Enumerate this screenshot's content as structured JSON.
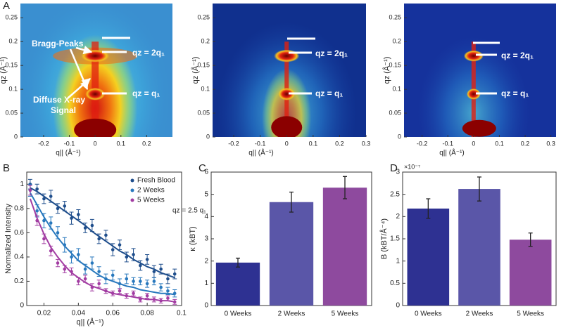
{
  "chart_data": [
    {
      "type": "heatmap",
      "panel": "A",
      "xlabel": "q|| (Å⁻¹)",
      "ylabel": "qz (Å⁻¹)",
      "xlim": [
        -0.29,
        0.3
      ],
      "xticks": [
        -0.2,
        -0.1,
        0,
        0.1,
        0.2
      ],
      "ylim": [
        0,
        0.28
      ],
      "yticks": [
        0,
        0.05,
        0.1,
        0.15,
        0.2,
        0.25
      ],
      "annotations": [
        "Bragg-Peaks",
        "Diffuse X-ray",
        "Signal",
        "qz = 2q₁",
        "qz = q₁"
      ]
    },
    {
      "type": "heatmap",
      "xlabel": "q|| (Å⁻¹)",
      "ylabel": "qz (Å⁻¹)",
      "xlim": [
        -0.28,
        0.3
      ],
      "xticks": [
        -0.2,
        -0.1,
        0,
        0.1,
        0.2,
        0.3
      ],
      "ylim": [
        0,
        0.28
      ],
      "yticks": [
        0,
        0.05,
        0.1,
        0.15,
        0.2,
        0.25
      ],
      "annotations": [
        "qz = 2q₁",
        "qz = q₁"
      ]
    },
    {
      "type": "heatmap",
      "xlabel": "q|| (Å⁻¹)",
      "ylabel": "qz (Å⁻¹)",
      "xlim": [
        -0.27,
        0.32
      ],
      "xticks": [
        -0.2,
        -0.1,
        0,
        0.1,
        0.2,
        0.3
      ],
      "ylim": [
        0,
        0.28
      ],
      "yticks": [
        0,
        0.05,
        0.1,
        0.15,
        0.2,
        0.25
      ],
      "annotations": [
        "qz = 2q₁",
        "qz = q₁"
      ]
    },
    {
      "type": "scatter",
      "panel": "B",
      "xlabel": "q|| (Å⁻¹)",
      "ylabel": "Normalized Intensity",
      "annotation": "qz = 2.5 q₁",
      "xlim": [
        0.01,
        0.1
      ],
      "xticks": [
        0.02,
        0.04,
        0.06,
        0.08,
        0.1
      ],
      "ylim": [
        0,
        1.1
      ],
      "yticks": [
        0,
        0.2,
        0.4,
        0.6,
        0.8,
        1
      ],
      "x": [
        0.012,
        0.016,
        0.02,
        0.024,
        0.028,
        0.032,
        0.036,
        0.04,
        0.044,
        0.048,
        0.052,
        0.056,
        0.06,
        0.064,
        0.068,
        0.072,
        0.076,
        0.08,
        0.084,
        0.088,
        0.092,
        0.096
      ],
      "series": [
        {
          "name": "Fresh Blood",
          "color": "#1f4e8c",
          "values": [
            1.0,
            0.96,
            0.88,
            0.9,
            0.8,
            0.82,
            0.72,
            0.75,
            0.64,
            0.66,
            0.55,
            0.58,
            0.46,
            0.5,
            0.4,
            0.42,
            0.33,
            0.38,
            0.28,
            0.3,
            0.22,
            0.26
          ],
          "errors": [
            0.04,
            0.04,
            0.04,
            0.05,
            0.04,
            0.04,
            0.05,
            0.04,
            0.04,
            0.05,
            0.04,
            0.04,
            0.05,
            0.04,
            0.04,
            0.05,
            0.04,
            0.04,
            0.05,
            0.04,
            0.04,
            0.04
          ],
          "fit": [
            0.97,
            0.94,
            0.9,
            0.86,
            0.82,
            0.78,
            0.74,
            0.7,
            0.66,
            0.61,
            0.57,
            0.53,
            0.49,
            0.45,
            0.42,
            0.38,
            0.35,
            0.32,
            0.3,
            0.27,
            0.25,
            0.23
          ]
        },
        {
          "name": "2 Weeks",
          "color": "#2878bd",
          "values": [
            0.95,
            0.78,
            0.7,
            0.68,
            0.6,
            0.5,
            0.4,
            0.42,
            0.3,
            0.35,
            0.28,
            0.22,
            0.25,
            0.18,
            0.22,
            0.2,
            0.2,
            0.18,
            0.2,
            0.15,
            0.12,
            0.1
          ],
          "errors": [
            0.05,
            0.05,
            0.06,
            0.05,
            0.05,
            0.06,
            0.05,
            0.05,
            0.04,
            0.05,
            0.04,
            0.04,
            0.04,
            0.04,
            0.04,
            0.03,
            0.03,
            0.03,
            0.03,
            0.03,
            0.03,
            0.03
          ],
          "fit": [
            0.93,
            0.83,
            0.73,
            0.64,
            0.56,
            0.49,
            0.43,
            0.37,
            0.33,
            0.29,
            0.25,
            0.22,
            0.2,
            0.18,
            0.16,
            0.15,
            0.13,
            0.12,
            0.11,
            0.1,
            0.1,
            0.09
          ]
        },
        {
          "name": "5 Weeks",
          "color": "#a23ca2",
          "values": [
            0.95,
            0.7,
            0.55,
            0.45,
            0.35,
            0.3,
            0.28,
            0.2,
            0.22,
            0.15,
            0.18,
            0.12,
            0.1,
            0.12,
            0.08,
            0.1,
            0.05,
            0.08,
            0.05,
            0.04,
            0.06,
            0.03
          ],
          "errors": [
            0.04,
            0.04,
            0.04,
            0.04,
            0.03,
            0.03,
            0.03,
            0.03,
            0.03,
            0.03,
            0.03,
            0.02,
            0.02,
            0.02,
            0.02,
            0.02,
            0.02,
            0.02,
            0.02,
            0.02,
            0.02,
            0.02
          ],
          "fit": [
            0.88,
            0.72,
            0.59,
            0.48,
            0.4,
            0.33,
            0.27,
            0.23,
            0.19,
            0.16,
            0.14,
            0.12,
            0.1,
            0.09,
            0.08,
            0.07,
            0.06,
            0.05,
            0.05,
            0.04,
            0.04,
            0.03
          ]
        }
      ]
    },
    {
      "type": "bar",
      "panel": "C",
      "ylabel": "κ (kBT)",
      "categories": [
        "0 Weeks",
        "2 Weeks",
        "5 Weeks"
      ],
      "values": [
        1.93,
        4.65,
        5.3
      ],
      "errors": [
        0.2,
        0.45,
        0.5
      ],
      "colors": [
        "#2e3192",
        "#5a56a8",
        "#8e4a9e"
      ],
      "ylim": [
        0,
        6
      ],
      "yticks": [
        0,
        1,
        2,
        3,
        4,
        5,
        6
      ]
    },
    {
      "type": "bar",
      "panel": "D",
      "ylabel": "B (kBT/Å⁻⁴)",
      "multiplier": "×10⁻⁷",
      "categories": [
        "0 Weeks",
        "2 Weeks",
        "5 Weeks"
      ],
      "values": [
        2.18e-07,
        2.62e-07,
        1.48e-07
      ],
      "errors": [
        2.2e-08,
        2.7e-08,
        1.5e-08
      ],
      "colors": [
        "#2e3192",
        "#5a56a8",
        "#8e4a9e"
      ],
      "ylim": [
        0,
        3e-07
      ],
      "yticks": [
        0,
        {
          "value": 5e-08,
          "label": "0.5"
        },
        {
          "value": 1e-07,
          "label": "1"
        },
        {
          "value": 1.5e-07,
          "label": "1.5"
        },
        {
          "value": 2e-07,
          "label": "2"
        },
        {
          "value": 2.5e-07,
          "label": "2.5"
        },
        {
          "value": 3e-07,
          "label": "3"
        }
      ]
    }
  ]
}
